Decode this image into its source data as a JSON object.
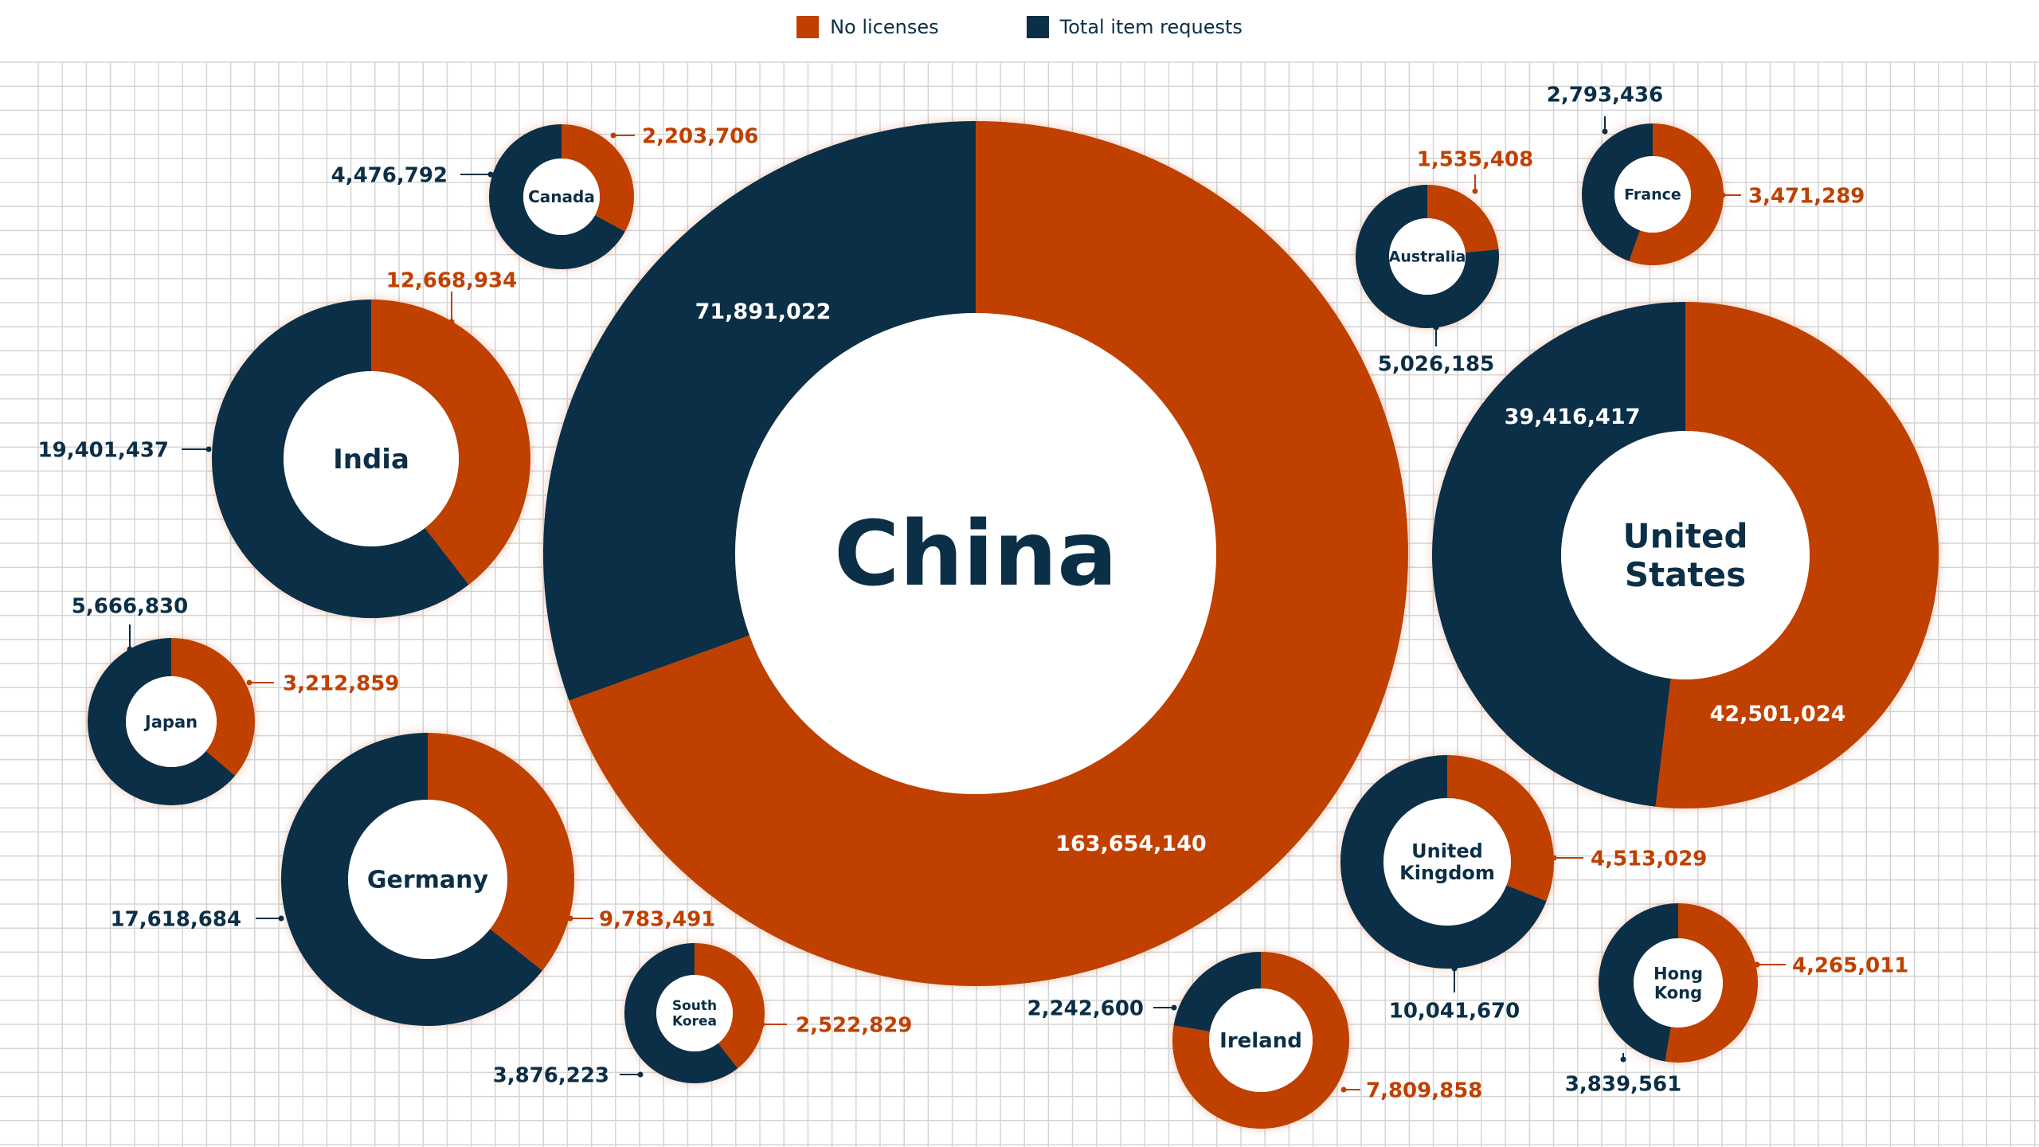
{
  "legend": {
    "items": [
      {
        "label": "No licenses",
        "color": "#c04000"
      },
      {
        "label": "Total item requests",
        "color": "#0b2f46"
      }
    ]
  },
  "colors": {
    "no_licenses": "#c04000",
    "total_item_requests": "#0b2f46",
    "grid": "#d5d5d5",
    "label_light": "#ffffff"
  },
  "chart_data": {
    "type": "donut",
    "series_names": [
      "No licenses",
      "Total item requests"
    ],
    "countries": [
      {
        "name": "China",
        "no_licenses": 163654140,
        "total_item_requests": 71891022,
        "no_licenses_label": "163,654,140",
        "total_label": "71,891,022"
      },
      {
        "name": "United States",
        "no_licenses": 42501024,
        "total_item_requests": 39416417,
        "no_licenses_label": "42,501,024",
        "total_label": "39,416,417"
      },
      {
        "name": "India",
        "no_licenses": 12668934,
        "total_item_requests": 19401437,
        "no_licenses_label": "12,668,934",
        "total_label": "19,401,437"
      },
      {
        "name": "Germany",
        "no_licenses": 9783491,
        "total_item_requests": 17618684,
        "no_licenses_label": "9,783,491",
        "total_label": "17,618,684"
      },
      {
        "name": "United Kingdom",
        "no_licenses": 4513029,
        "total_item_requests": 10041670,
        "no_licenses_label": "4,513,029",
        "total_label": "10,041,670"
      },
      {
        "name": "Ireland",
        "no_licenses": 7809858,
        "total_item_requests": 2242600,
        "no_licenses_label": "7,809,858",
        "total_label": "2,242,600"
      },
      {
        "name": "Hong Kong",
        "no_licenses": 4265011,
        "total_item_requests": 3839561,
        "no_licenses_label": "4,265,011",
        "total_label": "3,839,561"
      },
      {
        "name": "Japan",
        "no_licenses": 3212859,
        "total_item_requests": 5666830,
        "no_licenses_label": "3,212,859",
        "total_label": "5,666,830"
      },
      {
        "name": "Canada",
        "no_licenses": 2203706,
        "total_item_requests": 4476792,
        "no_licenses_label": "2,203,706",
        "total_label": "4,476,792"
      },
      {
        "name": "France",
        "no_licenses": 3471289,
        "total_item_requests": 2793436,
        "no_licenses_label": "3,471,289",
        "total_label": "2,793,436"
      },
      {
        "name": "Australia",
        "no_licenses": 1535408,
        "total_item_requests": 5026185,
        "no_licenses_label": "1,535,408",
        "total_label": "5,026,185"
      },
      {
        "name": "South Korea",
        "no_licenses": 2522829,
        "total_item_requests": 3876223,
        "no_licenses_label": "2,522,829",
        "total_label": "3,876,223"
      }
    ]
  }
}
